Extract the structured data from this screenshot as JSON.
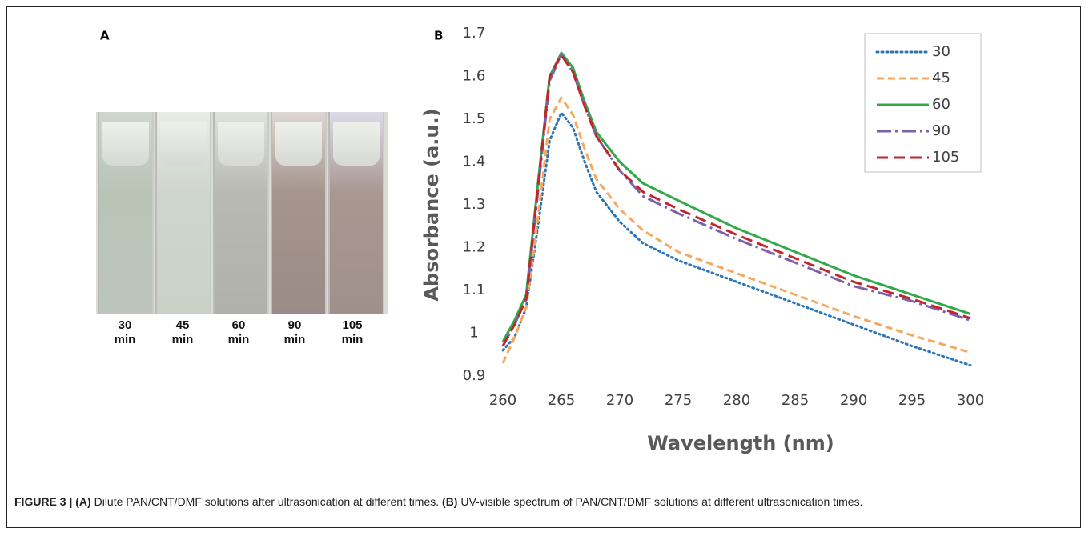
{
  "figure": {
    "panel_a": {
      "label": "A",
      "labels": [
        {
          "time": "30",
          "unit": "min"
        },
        {
          "time": "45",
          "unit": "min"
        },
        {
          "time": "60",
          "unit": "min"
        },
        {
          "time": "90",
          "unit": "min"
        },
        {
          "time": "105",
          "unit": "min"
        }
      ]
    },
    "panel_b": {
      "label": "B"
    },
    "caption": {
      "label": "FIGURE 3 |",
      "a_label": "(A)",
      "a_text": "Dilute PAN/CNT/DMF solutions after ultrasonication at different times.",
      "b_label": "(B)",
      "b_text": "UV-visible spectrum of PAN/CNT/DMF solutions at different ultrasonication times."
    }
  },
  "chart_data": {
    "type": "line",
    "x_label": "Wavelength (nm)",
    "y_label": "Absorbance (a.u.)",
    "x": [
      260,
      261,
      262,
      263,
      264,
      265,
      266,
      267,
      268,
      270,
      272,
      275,
      280,
      285,
      290,
      295,
      300
    ],
    "series": [
      {
        "name": "30",
        "color": "#2e75b6",
        "dash": "dotted",
        "values": [
          0.96,
          0.99,
          1.06,
          1.25,
          1.45,
          1.515,
          1.48,
          1.4,
          1.33,
          1.26,
          1.21,
          1.17,
          1.12,
          1.07,
          1.02,
          0.97,
          0.925
        ]
      },
      {
        "name": "45",
        "color": "#f4a95e",
        "dash": "dashed",
        "values": [
          0.93,
          0.99,
          1.06,
          1.27,
          1.5,
          1.55,
          1.51,
          1.43,
          1.36,
          1.29,
          1.24,
          1.19,
          1.14,
          1.09,
          1.04,
          0.995,
          0.955
        ]
      },
      {
        "name": "60",
        "color": "#33a84b",
        "dash": "solid",
        "values": [
          0.98,
          1.03,
          1.09,
          1.35,
          1.6,
          1.655,
          1.62,
          1.54,
          1.47,
          1.4,
          1.35,
          1.31,
          1.245,
          1.19,
          1.135,
          1.09,
          1.045
        ]
      },
      {
        "name": "90",
        "color": "#7e5fa8",
        "dash": "dashdot",
        "values": [
          0.97,
          1.02,
          1.08,
          1.33,
          1.59,
          1.65,
          1.61,
          1.53,
          1.46,
          1.38,
          1.32,
          1.28,
          1.22,
          1.165,
          1.11,
          1.075,
          1.03
        ]
      },
      {
        "name": "105",
        "color": "#c0272d",
        "dash": "longdash",
        "values": [
          0.97,
          1.02,
          1.08,
          1.34,
          1.6,
          1.65,
          1.61,
          1.53,
          1.46,
          1.38,
          1.33,
          1.29,
          1.23,
          1.175,
          1.12,
          1.08,
          1.035
        ]
      }
    ],
    "xlim": [
      260,
      300
    ],
    "xticks": [
      260,
      265,
      270,
      275,
      280,
      285,
      290,
      295,
      300
    ],
    "ylim": [
      0.9,
      1.7
    ],
    "yticks": [
      0.9,
      1,
      1.1,
      1.2,
      1.3,
      1.4,
      1.5,
      1.6,
      1.7
    ],
    "grid": false,
    "legend": "top-right"
  }
}
